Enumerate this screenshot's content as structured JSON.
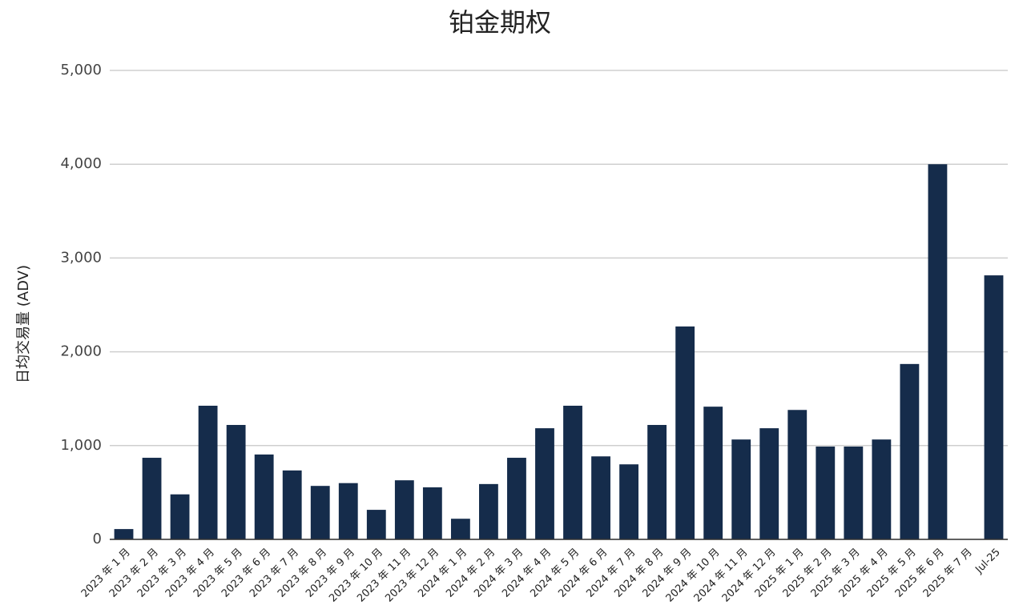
{
  "chart_data": {
    "type": "bar",
    "title": "铂金期权",
    "y_label": "日均交易量 (ADV)",
    "categories": [
      "2023 年 1 月",
      "2023 年 2 月",
      "2023 年 3 月",
      "2023 年 4 月",
      "2023 年 5 月",
      "2023 年 6 月",
      "2023 年 7 月",
      "2023 年 8 月",
      "2023 年 9 月",
      "2023 年 10 月",
      "2023 年 11 月",
      "2023 年 12 月",
      "2024 年 1 月",
      "2024 年 2 月",
      "2024 年 3 月",
      "2024 年 4 月",
      "2024 年 5 月",
      "2024 年 6 月",
      "2024 年 7 月",
      "2024 年 8 月",
      "2024 年 9 月",
      "2024 年 10 月",
      "2024 年 11 月",
      "2024 年 12 月",
      "2025 年 1 月",
      "2025 年 2 月",
      "2025 年 3 月",
      "2025 年 4 月",
      "2025 年 5 月",
      "2025 年 6 月",
      "2025 年 7 月",
      "Jul-25"
    ],
    "values": [
      110,
      870,
      480,
      1425,
      1220,
      905,
      735,
      570,
      600,
      315,
      630,
      555,
      220,
      590,
      870,
      1185,
      1425,
      885,
      800,
      1220,
      2270,
      1415,
      1065,
      1185,
      1380,
      990,
      990,
      1065,
      1870,
      4000,
      null,
      2815
    ],
    "color": "#152c4b",
    "ylim": [
      0,
      5000
    ],
    "yticks": [
      0,
      {
        "value": 1000,
        "label": "1,000"
      },
      {
        "value": 2000,
        "label": "2,000"
      },
      {
        "value": 3000,
        "label": "3,000"
      },
      {
        "value": 4000,
        "label": "4,000"
      },
      {
        "value": 5000,
        "label": "5,000"
      }
    ],
    "grid": true
  }
}
